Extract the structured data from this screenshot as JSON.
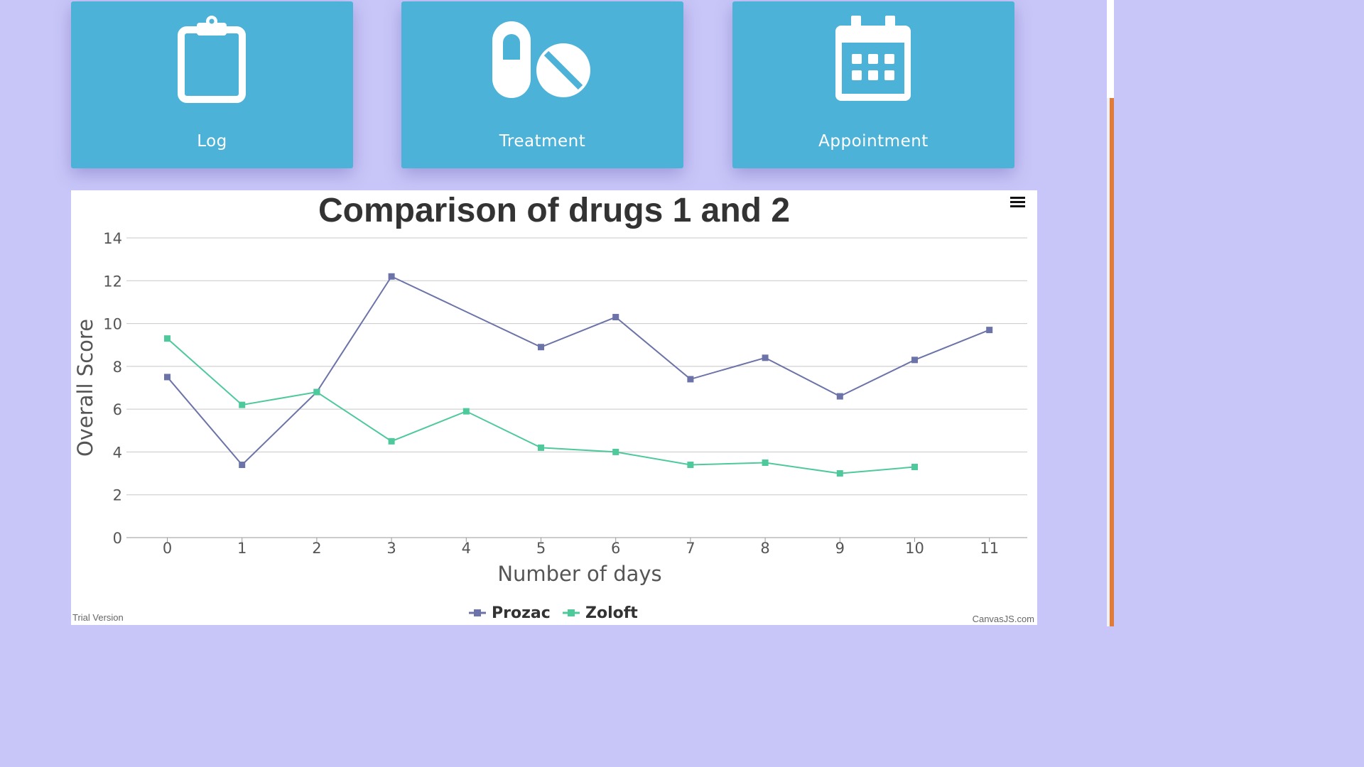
{
  "tiles": [
    {
      "label": "Log",
      "icon": "clipboard-icon"
    },
    {
      "label": "Treatment",
      "icon": "pills-icon"
    },
    {
      "label": "Appointment",
      "icon": "calendar-icon"
    }
  ],
  "colors": {
    "background": "#c8c6f8",
    "tile": "#4db2d8",
    "prozac": "#6b73a8",
    "zoloft": "#4ec99c",
    "scroll_thumb": "#e07b39"
  },
  "chart_footer": {
    "left": "Trial Version",
    "right": "CanvasJS.com"
  },
  "chart_data": {
    "type": "line",
    "title": "Comparison of drugs 1 and 2",
    "xlabel": "Number of days",
    "ylabel": "Overall Score",
    "xlim": [
      0,
      11
    ],
    "ylim": [
      0,
      14
    ],
    "x_ticks": [
      0,
      1,
      2,
      3,
      4,
      5,
      6,
      7,
      8,
      9,
      10,
      11
    ],
    "y_ticks": [
      0,
      2,
      4,
      6,
      8,
      10,
      12,
      14
    ],
    "grid": true,
    "legend_position": "bottom-center",
    "series": [
      {
        "name": "Prozac",
        "x": [
          0,
          1,
          2,
          3,
          4,
          5,
          6,
          7,
          8,
          9,
          10,
          11
        ],
        "values": [
          7.5,
          3.4,
          6.8,
          12.2,
          null,
          8.9,
          10.3,
          7.4,
          8.4,
          6.6,
          8.3,
          9.7
        ]
      },
      {
        "name": "Zoloft",
        "x": [
          0,
          1,
          2,
          3,
          4,
          5,
          6,
          7,
          8,
          9,
          10
        ],
        "values": [
          9.3,
          6.2,
          6.8,
          4.5,
          5.9,
          4.2,
          4.0,
          3.4,
          3.5,
          3.0,
          3.3
        ]
      }
    ]
  }
}
